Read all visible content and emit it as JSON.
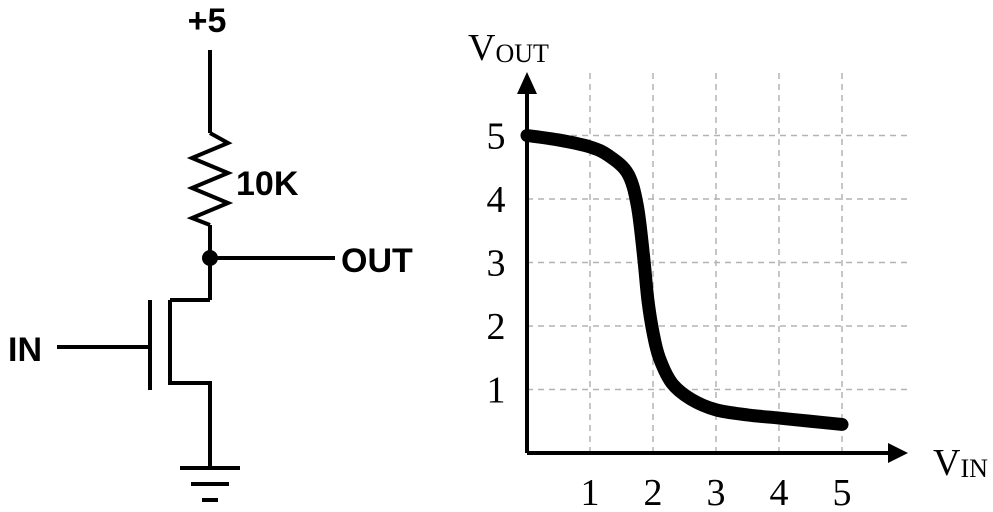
{
  "circuit": {
    "supply_label": "+5",
    "resistor_label": "10K",
    "output_label": "OUT",
    "input_label": "IN"
  },
  "colors": {
    "wire": "#000000",
    "grid": "#b3b3b3",
    "curve": "#000000",
    "background": "#ffffff"
  },
  "chart_data": {
    "type": "line",
    "title": "",
    "ylabel_main": "V",
    "ylabel_sub": "OUT",
    "xlabel_main": "V",
    "xlabel_sub": "IN",
    "xlim": [
      0,
      6
    ],
    "ylim": [
      0,
      5.5
    ],
    "x_ticks": [
      1,
      2,
      3,
      4,
      5
    ],
    "x_tick_labels": [
      "1",
      "2",
      "3",
      "4",
      "5"
    ],
    "y_ticks": [
      1,
      2,
      3,
      4,
      5
    ],
    "y_tick_labels": [
      "1",
      "2",
      "3",
      "4",
      "5"
    ],
    "grid": true,
    "series": [
      {
        "x": [
          0,
          0.5,
          1.0,
          1.3,
          1.6,
          1.75,
          1.85,
          1.92,
          2.0,
          2.1,
          2.3,
          2.6,
          3.0,
          3.5,
          4.0,
          4.5,
          5.0
        ],
        "y": [
          5.0,
          4.93,
          4.82,
          4.68,
          4.4,
          3.9,
          3.1,
          2.4,
          1.9,
          1.5,
          1.1,
          0.85,
          0.68,
          0.6,
          0.55,
          0.5,
          0.45
        ]
      }
    ]
  }
}
